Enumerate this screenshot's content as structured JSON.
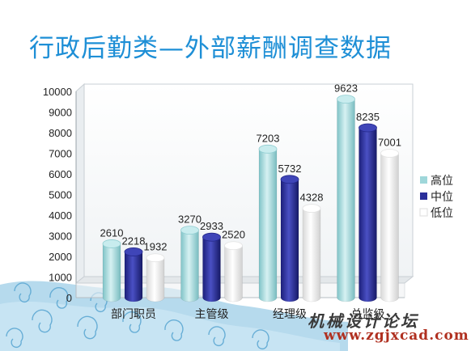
{
  "slide": {
    "title": "行政后勤类—外部薪酬调查数据",
    "watermark_cn": "机械设计论坛",
    "watermark_url": "www.zgjxcad.com"
  },
  "colors": {
    "title": "#1e8fd6",
    "high": "#9fd7da",
    "mid": "#2a2f9a",
    "low": "#f2f2f2",
    "wave": "#9ccde6"
  },
  "chart_data": {
    "type": "bar",
    "categories": [
      "部门职员",
      "主管级",
      "经理级",
      "总监级"
    ],
    "series": [
      {
        "name": "高位",
        "values": [
          2610,
          3270,
          7203,
          9623
        ]
      },
      {
        "name": "中位",
        "values": [
          2218,
          2933,
          5732,
          8235
        ]
      },
      {
        "name": "低位",
        "values": [
          1932,
          2520,
          4328,
          7001
        ]
      }
    ],
    "ylim": [
      0,
      10000
    ],
    "yticks": [
      "0",
      "1000",
      "2000",
      "3000",
      "4000",
      "5000",
      "6000",
      "7000",
      "8000",
      "9000",
      "10000"
    ],
    "legend_position": "right",
    "grid": false,
    "style": "3d cylinder"
  }
}
